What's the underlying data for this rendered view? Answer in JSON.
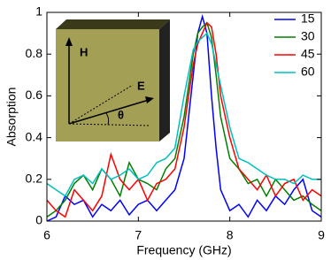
{
  "chart_data": {
    "type": "line",
    "xlabel": "Frequency (GHz)",
    "ylabel": "Absorption",
    "inset_labels": [
      "H",
      "E",
      "θ"
    ],
    "x": [
      6.0,
      6.1,
      6.2,
      6.3,
      6.4,
      6.5,
      6.6,
      6.7,
      6.8,
      6.9,
      7.0,
      7.1,
      7.2,
      7.3,
      7.4,
      7.5,
      7.6,
      7.65,
      7.7,
      7.75,
      7.8,
      7.85,
      7.9,
      8.0,
      8.1,
      8.2,
      8.3,
      8.4,
      8.5,
      8.6,
      8.7,
      8.8,
      8.9,
      9.0
    ],
    "series": [
      {
        "name": "15",
        "color": "#0000ff",
        "values": [
          0,
          0.02,
          0.12,
          0.08,
          0.1,
          0.02,
          0.08,
          0.05,
          0.1,
          0.03,
          0.08,
          0.1,
          0.05,
          0.1,
          0.15,
          0.3,
          0.7,
          0.9,
          0.98,
          0.9,
          0.6,
          0.35,
          0.15,
          0.05,
          0.08,
          0.02,
          0.1,
          0.05,
          0.12,
          0.08,
          0.15,
          0.2,
          0.05,
          0.02
        ]
      },
      {
        "name": "30",
        "color": "#007f00",
        "values": [
          0.02,
          0.05,
          0.1,
          0.18,
          0.22,
          0.15,
          0.25,
          0.2,
          0.12,
          0.28,
          0.2,
          0.18,
          0.15,
          0.25,
          0.3,
          0.5,
          0.8,
          0.9,
          0.93,
          0.95,
          0.88,
          0.7,
          0.5,
          0.3,
          0.25,
          0.18,
          0.2,
          0.12,
          0.2,
          0.15,
          0.1,
          0.12,
          0.08,
          0.05
        ]
      },
      {
        "name": "45",
        "color": "#ff0000",
        "values": [
          0.1,
          0.05,
          0.02,
          0.15,
          0.1,
          0.05,
          0.12,
          0.32,
          0.2,
          0.15,
          0.2,
          0.1,
          0.18,
          0.2,
          0.25,
          0.45,
          0.75,
          0.85,
          0.9,
          0.95,
          0.93,
          0.8,
          0.6,
          0.4,
          0.25,
          0.2,
          0.15,
          0.22,
          0.12,
          0.18,
          0.2,
          0.1,
          0.15,
          0.12
        ]
      },
      {
        "name": "60",
        "color": "#00bfbf",
        "values": [
          0.18,
          0.15,
          0.12,
          0.2,
          0.22,
          0.18,
          0.25,
          0.2,
          0.22,
          0.25,
          0.2,
          0.22,
          0.28,
          0.3,
          0.35,
          0.6,
          0.82,
          0.86,
          0.88,
          0.9,
          0.85,
          0.75,
          0.65,
          0.45,
          0.3,
          0.28,
          0.25,
          0.22,
          0.2,
          0.2,
          0.18,
          0.22,
          0.2,
          0.2
        ]
      }
    ],
    "xlim": [
      6,
      9
    ],
    "xticks": [
      6,
      7,
      8,
      9
    ],
    "ylim": [
      0,
      1
    ],
    "yticks": [
      0,
      0.2,
      0.4,
      0.6,
      0.8,
      1
    ],
    "legend": "upper right"
  }
}
